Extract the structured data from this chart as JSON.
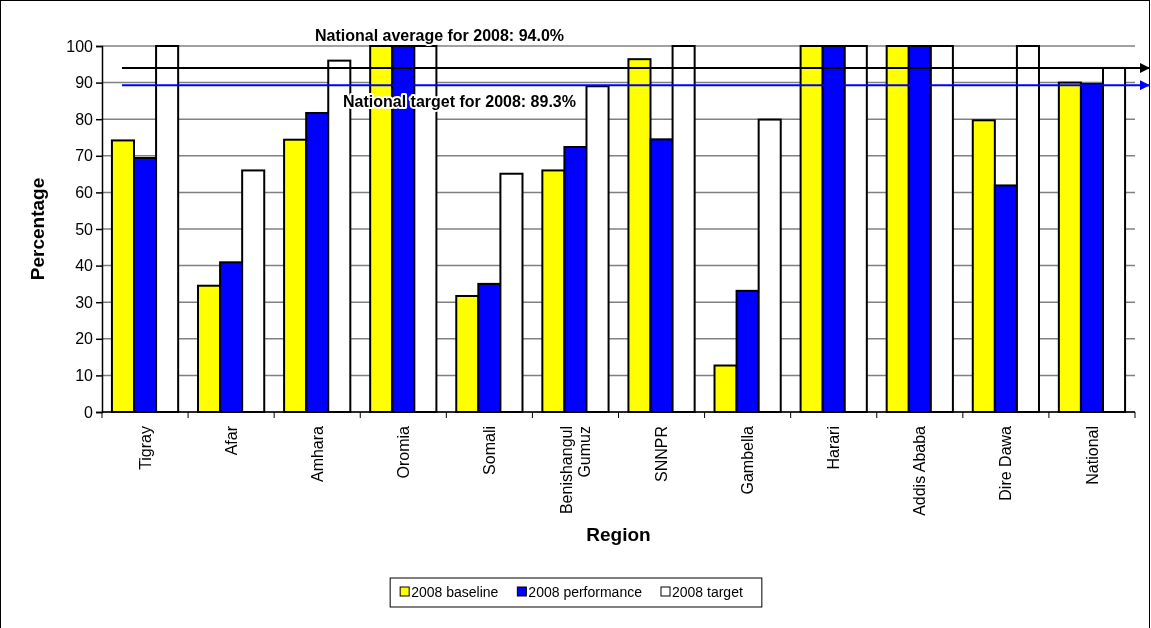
{
  "chart_data": {
    "type": "bar",
    "xlabel": "Region",
    "ylabel": "Percentage",
    "categories": [
      "Tigray",
      "Afar",
      "Amhara",
      "Oromia",
      "Somali",
      "Benishangul Gumuz",
      "SNNPR",
      "Gambella",
      "Harari",
      "Addis Ababa",
      "Dire Dawa",
      "National"
    ],
    "series": [
      {
        "name": "2008 baseline",
        "color": "#ffff00",
        "values": [
          74.2,
          34.5,
          74.4,
          100,
          31.7,
          66.0,
          96.4,
          12.7,
          100,
          100,
          79.7,
          90.0
        ]
      },
      {
        "name": "2008 performance",
        "color": "#0000ff",
        "values": [
          69.4,
          40.9,
          81.7,
          100,
          35.0,
          72.4,
          74.5,
          33.1,
          100,
          100,
          61.9,
          89.6
        ]
      },
      {
        "name": "2008 target",
        "color": "#ffffff",
        "values": [
          100,
          66.0,
          96.0,
          100,
          65.1,
          89.0,
          100,
          79.9,
          100,
          100,
          100,
          94.0
        ]
      }
    ],
    "ylim": [
      0,
      100
    ],
    "yticks": [
      0,
      10,
      20,
      30,
      40,
      50,
      60,
      70,
      80,
      90,
      100
    ],
    "grid": "y",
    "legend": "bottom",
    "ref_lines": [
      {
        "axis": "y",
        "value": 94.0,
        "label": "National average for 2008: 94.0%",
        "color": "#000000"
      },
      {
        "axis": "y",
        "value": 89.3,
        "label": "National target for 2008: 89.3%",
        "color": "#0000ff"
      }
    ]
  }
}
